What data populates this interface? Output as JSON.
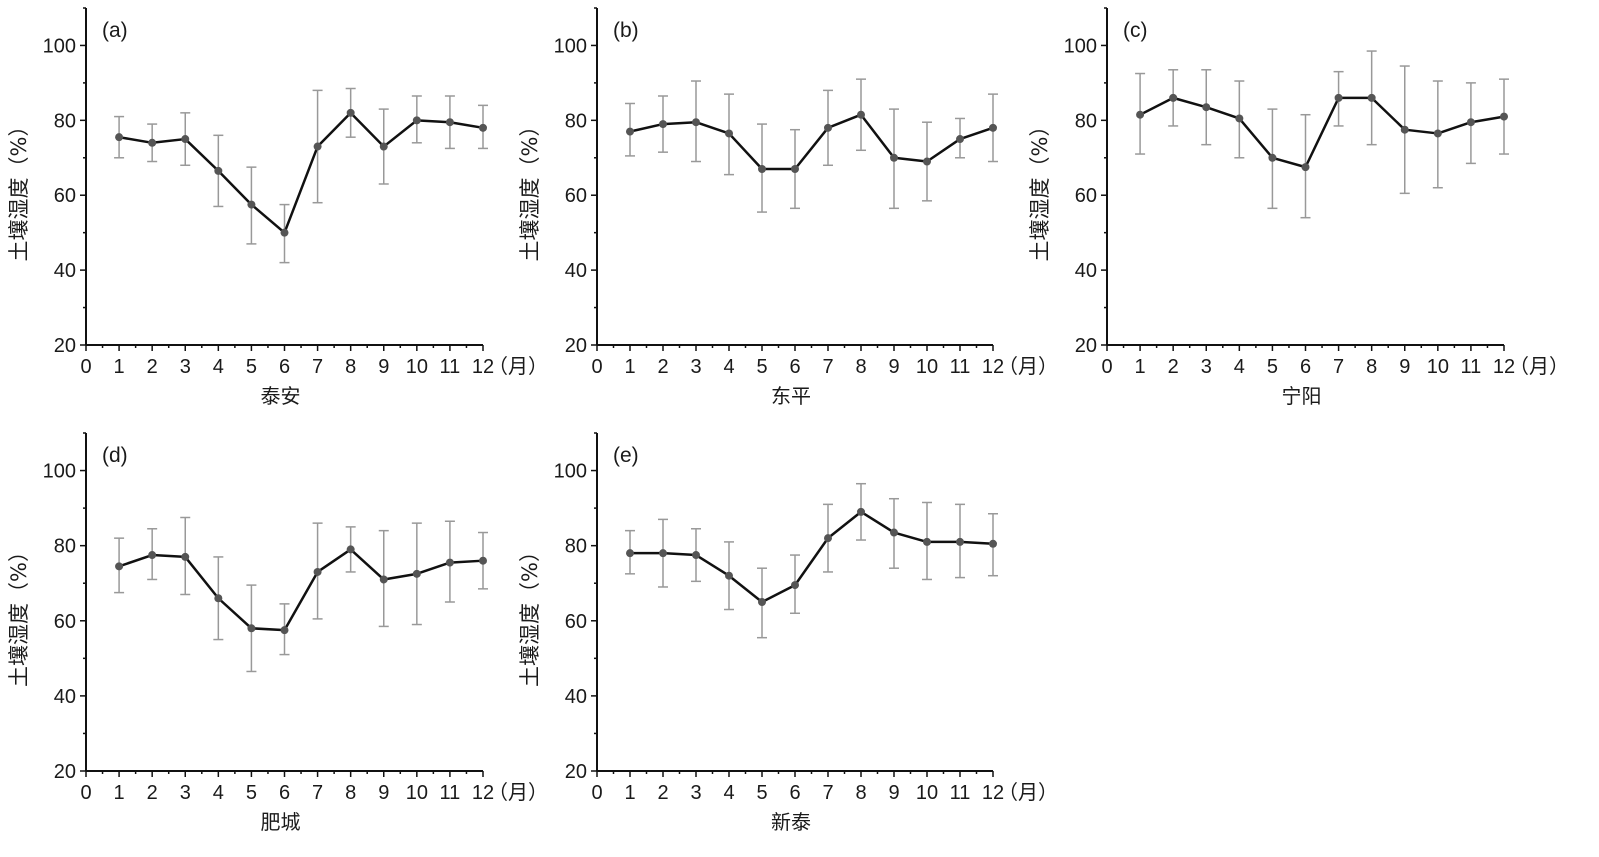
{
  "chart_data": [
    {
      "type": "line",
      "panel_label": "(a)",
      "xlabel": "泰安",
      "ylabel": "土壤湿度（%）",
      "x_unit": "（月）",
      "xlim": [
        0,
        12
      ],
      "ylim": [
        20,
        110
      ],
      "xticks": [
        0,
        1,
        2,
        3,
        4,
        5,
        6,
        7,
        8,
        9,
        10,
        11,
        12
      ],
      "yticks": [
        20,
        40,
        60,
        80,
        100
      ],
      "x": [
        1,
        2,
        3,
        4,
        5,
        6,
        7,
        8,
        9,
        10,
        11,
        12
      ],
      "values": [
        75.5,
        74,
        75,
        66.5,
        57.5,
        50,
        73,
        82,
        73,
        80,
        79.5,
        78
      ],
      "err_low": [
        70,
        69,
        68,
        57,
        47,
        42,
        58,
        75.5,
        63,
        74,
        72.5,
        72.5
      ],
      "err_high": [
        81,
        79,
        82,
        76,
        67.5,
        57.5,
        88,
        88.5,
        83,
        86.5,
        86.5,
        84
      ]
    },
    {
      "type": "line",
      "panel_label": "(b)",
      "xlabel": "东平",
      "ylabel": "土壤湿度（%）",
      "x_unit": "（月）",
      "xlim": [
        0,
        12
      ],
      "ylim": [
        20,
        110
      ],
      "xticks": [
        0,
        1,
        2,
        3,
        4,
        5,
        6,
        7,
        8,
        9,
        10,
        11,
        12
      ],
      "yticks": [
        20,
        40,
        60,
        80,
        100
      ],
      "x": [
        1,
        2,
        3,
        4,
        5,
        6,
        7,
        8,
        9,
        10,
        11,
        12
      ],
      "values": [
        77,
        79,
        79.5,
        76.5,
        67,
        67,
        78,
        81.5,
        70,
        69,
        75,
        78
      ],
      "err_low": [
        70.5,
        71.5,
        69,
        65.5,
        55.5,
        56.5,
        68,
        72,
        56.5,
        58.5,
        70,
        69
      ],
      "err_high": [
        84.5,
        86.5,
        90.5,
        87,
        79,
        77.5,
        88,
        91,
        83,
        79.5,
        80.5,
        87
      ]
    },
    {
      "type": "line",
      "panel_label": "(c)",
      "xlabel": "宁阳",
      "ylabel": "土壤湿度（%）",
      "x_unit": "（月）",
      "xlim": [
        0,
        12
      ],
      "ylim": [
        20,
        110
      ],
      "xticks": [
        0,
        1,
        2,
        3,
        4,
        5,
        6,
        7,
        8,
        9,
        10,
        11,
        12
      ],
      "yticks": [
        20,
        40,
        60,
        80,
        100
      ],
      "x": [
        1,
        2,
        3,
        4,
        5,
        6,
        7,
        8,
        9,
        10,
        11,
        12
      ],
      "values": [
        81.5,
        86,
        83.5,
        80.5,
        70,
        67.5,
        86,
        86,
        77.5,
        76.5,
        79.5,
        81
      ],
      "err_low": [
        71,
        78.5,
        73.5,
        70,
        56.5,
        54,
        78.5,
        73.5,
        60.5,
        62,
        68.5,
        71
      ],
      "err_high": [
        92.5,
        93.5,
        93.5,
        90.5,
        83,
        81.5,
        93,
        98.5,
        94.5,
        90.5,
        90,
        91
      ]
    },
    {
      "type": "line",
      "panel_label": "(d)",
      "xlabel": "肥城",
      "ylabel": "土壤湿度（%）",
      "x_unit": "（月）",
      "xlim": [
        0,
        12
      ],
      "ylim": [
        20,
        110
      ],
      "xticks": [
        0,
        1,
        2,
        3,
        4,
        5,
        6,
        7,
        8,
        9,
        10,
        11,
        12
      ],
      "yticks": [
        20,
        40,
        60,
        80,
        100
      ],
      "x": [
        1,
        2,
        3,
        4,
        5,
        6,
        7,
        8,
        9,
        10,
        11,
        12
      ],
      "values": [
        74.5,
        77.5,
        77,
        66,
        58,
        57.5,
        73,
        79,
        71,
        72.5,
        75.5,
        76
      ],
      "err_low": [
        67.5,
        71,
        67,
        55,
        46.5,
        51,
        60.5,
        73,
        58.5,
        59,
        65,
        68.5
      ],
      "err_high": [
        82,
        84.5,
        87.5,
        77,
        69.5,
        64.5,
        86,
        85,
        84,
        86,
        86.5,
        83.5
      ]
    },
    {
      "type": "line",
      "panel_label": "(e)",
      "xlabel": "新泰",
      "ylabel": "土壤湿度（%）",
      "x_unit": "（月）",
      "xlim": [
        0,
        12
      ],
      "ylim": [
        20,
        110
      ],
      "xticks": [
        0,
        1,
        2,
        3,
        4,
        5,
        6,
        7,
        8,
        9,
        10,
        11,
        12
      ],
      "yticks": [
        20,
        40,
        60,
        80,
        100
      ],
      "x": [
        1,
        2,
        3,
        4,
        5,
        6,
        7,
        8,
        9,
        10,
        11,
        12
      ],
      "values": [
        78,
        78,
        77.5,
        72,
        65,
        69.5,
        82,
        89,
        83.5,
        81,
        81,
        80.5
      ],
      "err_low": [
        72.5,
        69,
        70.5,
        63,
        55.5,
        62,
        73,
        81.5,
        74,
        71,
        71.5,
        72
      ],
      "err_high": [
        84,
        87,
        84.5,
        81,
        74,
        77.5,
        91,
        96.5,
        92.5,
        91.5,
        91,
        88.5
      ]
    }
  ],
  "colors": {
    "line": "#111111",
    "marker": "#555555",
    "errorbar": "#999999",
    "axis": "#111111"
  }
}
